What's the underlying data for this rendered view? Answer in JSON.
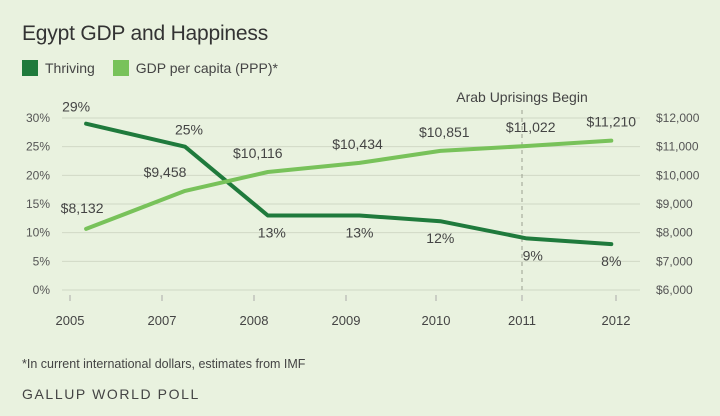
{
  "title": "Egypt GDP and Happiness",
  "colors": {
    "thriving": "#1f7a3c",
    "gdp": "#78c25a",
    "grid": "#d0d8c6",
    "annotation": "#9aa090"
  },
  "legend": [
    {
      "label": "Thriving",
      "color": "#1f7a3c"
    },
    {
      "label": "GDP per capita (PPP)*",
      "color": "#78c25a"
    }
  ],
  "footnote": "*In current international dollars, estimates from IMF",
  "source": "GALLUP WORLD POLL",
  "chart_data": {
    "type": "line",
    "x_ticks": [
      "2005",
      "2007",
      "2008",
      "2009",
      "2010",
      "2011",
      "2012"
    ],
    "y_left_ticks": [
      "0%",
      "5%",
      "10%",
      "15%",
      "20%",
      "25%",
      "30%"
    ],
    "y_left_range": [
      0,
      30
    ],
    "y_right_ticks": [
      "$6,000",
      "$7,000",
      "$8,000",
      "$9,000",
      "$10,000",
      "$11,000",
      "$12,000"
    ],
    "y_right_range": [
      6000,
      12000
    ],
    "grid": true,
    "series": [
      {
        "name": "Thriving",
        "axis": "left",
        "x": [
          2005.35,
          2007.25,
          2008.15,
          2009.15,
          2010.05,
          2011.05,
          2011.95
        ],
        "values": [
          29,
          25,
          13,
          13,
          12,
          9,
          8
        ],
        "labels": [
          "29%",
          "25%",
          "13%",
          "13%",
          "12%",
          "9%",
          "8%"
        ]
      },
      {
        "name": "GDP per capita (PPP)*",
        "axis": "right",
        "x": [
          2005.35,
          2007.25,
          2008.15,
          2009.15,
          2010.05,
          2011.05,
          2011.95
        ],
        "values": [
          8132,
          9458,
          10116,
          10434,
          10851,
          11022,
          11210
        ],
        "labels": [
          "$8,132",
          "$9,458",
          "$10,116",
          "$10,434",
          "$10,851",
          "$11,022",
          "$11,210"
        ]
      }
    ],
    "annotations": [
      {
        "text": "Arab Uprisings Begin",
        "x": 2011.0
      }
    ]
  }
}
